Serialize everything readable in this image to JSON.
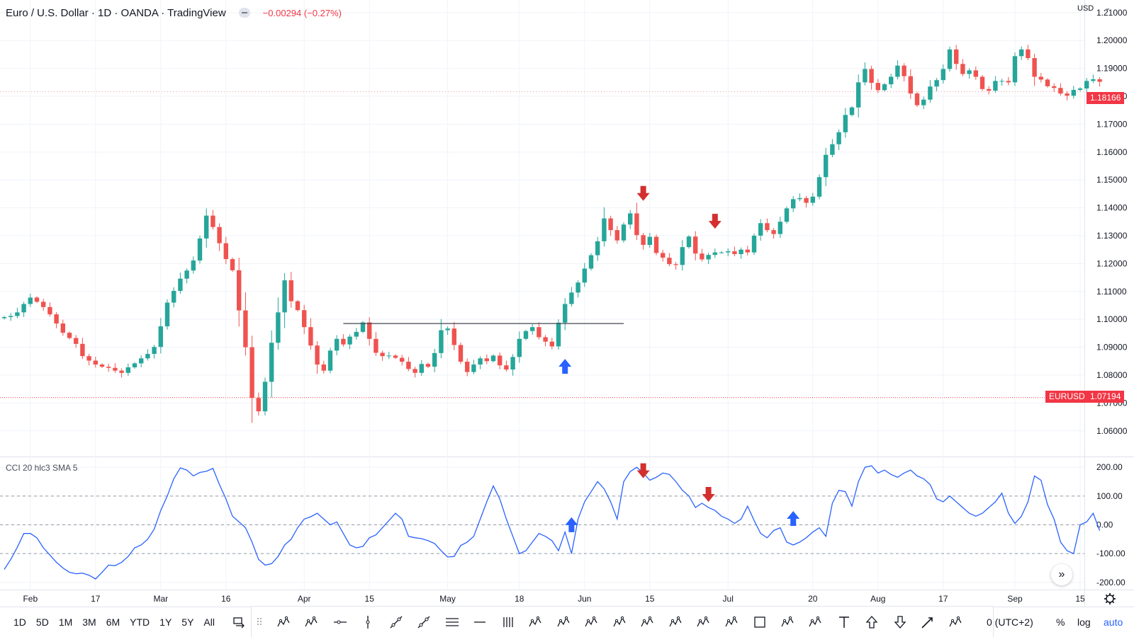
{
  "header": {
    "title": "Euro / U.S. Dollar · 1D · OANDA · TradingView",
    "change": "−0.00294 (−0.27%)"
  },
  "currency": {
    "label": "USD",
    "chevron": "⌄"
  },
  "badges": {
    "last_price": "1.18166",
    "symbol": "EURUSD",
    "crosshair_price": "1.07194"
  },
  "indicator": {
    "label": "CCI 20 hlc3 SMA 5"
  },
  "timeframes": [
    "1D",
    "5D",
    "1M",
    "3M",
    "6M",
    "YTD",
    "1Y",
    "5Y",
    "All"
  ],
  "bottom_right": {
    "timezone": "0 (UTC+2)",
    "percent": "%",
    "log": "log",
    "auto": "auto"
  },
  "scroll_icon": "»",
  "colors": {
    "up": "#26a69a",
    "down": "#ef5350",
    "cci_line": "#2962ff",
    "arrow_up": "#2962ff",
    "arrow_down": "#d32f2f",
    "price_badge": "#f23645",
    "accent": "#2962ff"
  },
  "icons": {
    "settings": "gear-icon",
    "scroll": "double-chevron-right-icon",
    "compare": "compare-icon"
  },
  "chart_data": [
    {
      "type": "candlestick",
      "title": "Euro / U.S. Dollar · 1D · OANDA · TradingView",
      "xlabel": "",
      "ylabel": "",
      "x_ticks": [
        "Feb",
        "17",
        "Mar",
        "16",
        "Apr",
        "15",
        "May",
        "18",
        "Jun",
        "15",
        "Jul",
        "20",
        "Aug",
        "17",
        "Sep",
        "15"
      ],
      "x_tick_index": [
        4,
        14,
        24,
        34,
        46,
        56,
        68,
        79,
        89,
        99,
        111,
        124,
        134,
        144,
        155,
        165
      ],
      "y_ticks": [
        "1.06000",
        "1.07000",
        "1.08000",
        "1.09000",
        "1.10000",
        "1.11000",
        "1.12000",
        "1.13000",
        "1.14000",
        "1.15000",
        "1.16000",
        "1.17000",
        "1.18000",
        "1.19000",
        "1.20000",
        "1.21000"
      ],
      "ylim": [
        1.0508,
        1.2125
      ],
      "grid": true,
      "hline": 1.0985,
      "hline_range": [
        52,
        95
      ],
      "crosshair_price": 1.07194,
      "last_price": 1.18166,
      "closes": [
        1.1008,
        1.1012,
        1.1025,
        1.1055,
        1.1078,
        1.1063,
        1.1044,
        1.1018,
        1.0985,
        1.0952,
        1.0933,
        1.0912,
        1.0868,
        1.0852,
        1.0838,
        1.083,
        1.0826,
        1.0816,
        1.0808,
        1.0828,
        1.0842,
        1.086,
        1.0876,
        1.0901,
        1.0975,
        1.106,
        1.1102,
        1.1146,
        1.1175,
        1.1211,
        1.129,
        1.1372,
        1.1331,
        1.1273,
        1.1216,
        1.1176,
        1.1032,
        1.09,
        1.0718,
        1.067,
        1.0776,
        1.0916,
        1.1025,
        1.114,
        1.1065,
        1.1033,
        1.0972,
        1.0906,
        1.0838,
        1.0816,
        1.0888,
        1.093,
        1.091,
        1.0938,
        1.0955,
        1.0989,
        1.093,
        1.088,
        1.0868,
        1.087,
        1.0862,
        1.0848,
        1.0822,
        1.0808,
        1.084,
        1.083,
        1.0879,
        1.0961,
        1.0967,
        1.0908,
        1.0848,
        1.0811,
        1.0838,
        1.086,
        1.085,
        1.087,
        1.0835,
        1.082,
        1.0865,
        1.093,
        1.0958,
        1.0972,
        1.0936,
        1.092,
        1.0903,
        1.0988,
        1.1055,
        1.1096,
        1.1132,
        1.1182,
        1.123,
        1.128,
        1.1362,
        1.132,
        1.1283,
        1.134,
        1.138,
        1.1302,
        1.1267,
        1.1296,
        1.1238,
        1.1221,
        1.1198,
        1.1195,
        1.1259,
        1.1297,
        1.1236,
        1.1215,
        1.1231,
        1.124,
        1.124,
        1.1244,
        1.1234,
        1.125,
        1.124,
        1.13,
        1.1345,
        1.132,
        1.1306,
        1.135,
        1.1398,
        1.1431,
        1.1435,
        1.1418,
        1.144,
        1.151,
        1.159,
        1.1628,
        1.1671,
        1.1733,
        1.176,
        1.185,
        1.1898,
        1.1848,
        1.1822,
        1.1843,
        1.187,
        1.191,
        1.1872,
        1.181,
        1.1768,
        1.1788,
        1.1835,
        1.1858,
        1.1898,
        1.1968,
        1.1916,
        1.188,
        1.1893,
        1.187,
        1.1826,
        1.182,
        1.1855,
        1.1855,
        1.185,
        1.1944,
        1.1968,
        1.1937,
        1.187,
        1.186,
        1.1836,
        1.183,
        1.181,
        1.1802,
        1.1823,
        1.1828,
        1.1855,
        1.1861,
        1.1852
      ]
    },
    {
      "type": "line",
      "title": "CCI 20 hlc3 SMA 5",
      "series": [
        {
          "name": "CCI 20 hlc3 SMA 5",
          "values": [
            -155,
            -120,
            -78,
            -30,
            -30,
            -45,
            -80,
            -105,
            -130,
            -150,
            -165,
            -170,
            -168,
            -175,
            -188,
            -165,
            -140,
            -142,
            -130,
            -110,
            -80,
            -70,
            -50,
            -15,
            50,
            100,
            160,
            198,
            190,
            170,
            182,
            186,
            196,
            140,
            90,
            30,
            10,
            -10,
            -60,
            -120,
            -140,
            -135,
            -110,
            -70,
            -50,
            -10,
            20,
            28,
            40,
            20,
            0,
            10,
            -30,
            -70,
            -80,
            -75,
            -45,
            -35,
            -10,
            15,
            40,
            20,
            -40,
            -45,
            -48,
            -55,
            -65,
            -90,
            -112,
            -110,
            -72,
            -60,
            -40,
            20,
            80,
            135,
            90,
            20,
            -40,
            -100,
            -90,
            -60,
            -30,
            -40,
            -55,
            -90,
            -25,
            -100,
            20,
            80,
            115,
            150,
            125,
            80,
            20,
            150,
            185,
            200,
            180,
            155,
            165,
            180,
            175,
            150,
            120,
            100,
            60,
            75,
            60,
            50,
            30,
            20,
            5,
            20,
            65,
            15,
            -30,
            -45,
            -20,
            -10,
            -60,
            -70,
            -60,
            -45,
            -25,
            -10,
            -40,
            75,
            120,
            115,
            65,
            150,
            200,
            205,
            180,
            190,
            175,
            165,
            180,
            190,
            170,
            160,
            140,
            90,
            80,
            100,
            80,
            60,
            40,
            30,
            40,
            60,
            80,
            110,
            40,
            5,
            30,
            80,
            170,
            155,
            70,
            20,
            -60,
            -90,
            -100,
            0,
            10,
            40,
            -20
          ]
        }
      ],
      "y_ticks": [
        "200.00",
        "100.00",
        "0.00",
        "-100.00",
        "-200.00"
      ],
      "ylim": [
        -225,
        225
      ],
      "reference_lines": [
        100,
        0,
        -100
      ],
      "grid": true
    }
  ],
  "signals": [
    {
      "pane": "price",
      "direction": "up",
      "index": 86,
      "value": 1.0858
    },
    {
      "pane": "price",
      "direction": "down",
      "index": 98,
      "value": 1.1425
    },
    {
      "pane": "price",
      "direction": "down",
      "index": 109,
      "value": 1.1325
    },
    {
      "pane": "cci",
      "direction": "up",
      "index": 87,
      "value": 26
    },
    {
      "pane": "cci",
      "direction": "down",
      "index": 98,
      "value": 162
    },
    {
      "pane": "cci",
      "direction": "down",
      "index": 108,
      "value": 80
    },
    {
      "pane": "cci",
      "direction": "up",
      "index": 121,
      "value": 48
    }
  ]
}
